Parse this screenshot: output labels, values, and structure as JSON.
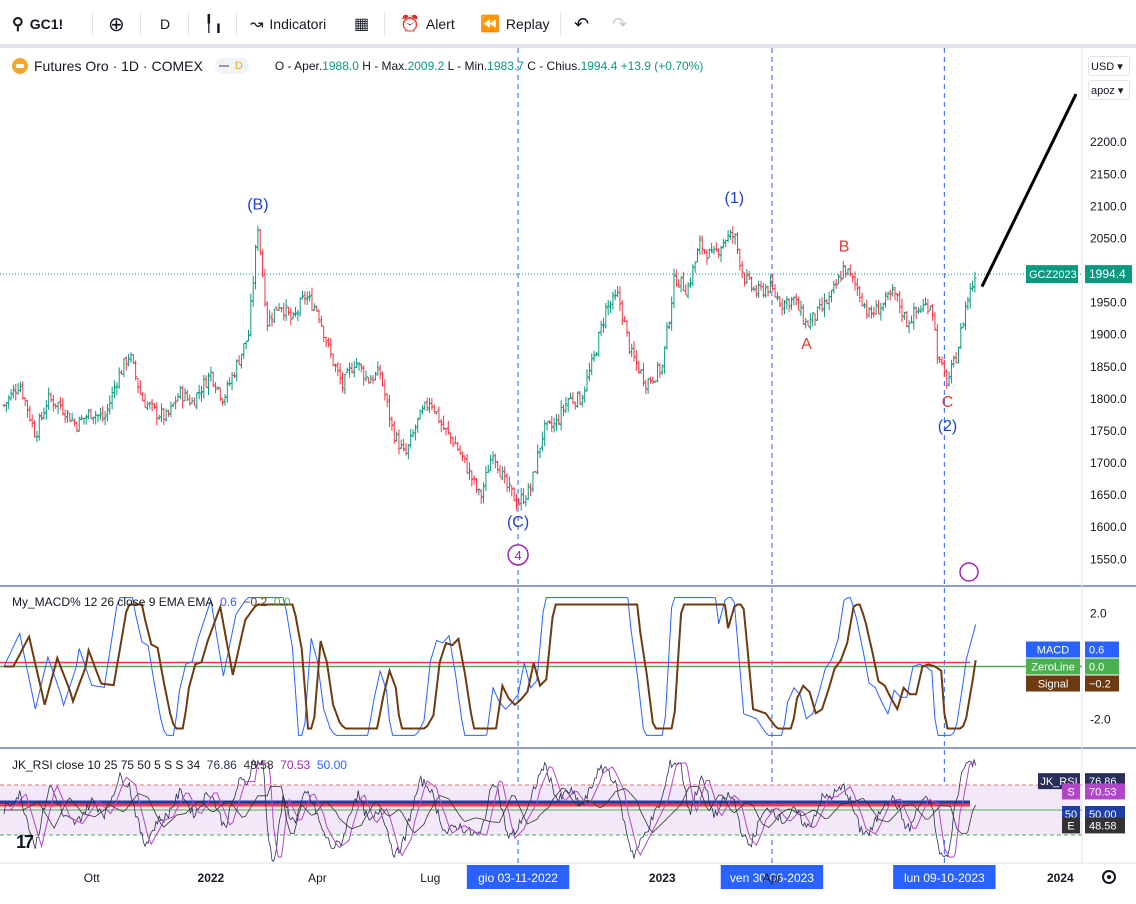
{
  "toolbar": {
    "symbol": "GC1!",
    "interval": "D",
    "indicators_label": "Indicatori",
    "alert_label": "Alert",
    "replay_label": "Replay"
  },
  "legend": {
    "title": "Futures Oro · 1D · COMEX",
    "badge": "D",
    "open_label": "O - Aper.",
    "open": "1988.0",
    "high_label": "H - Max.",
    "high": "2009.2",
    "low_label": "L - Min.",
    "low": "1983.7",
    "close_label": "C - Chius.",
    "close": "1994.4",
    "change": "+13.9 (+0.70%)"
  },
  "currency": "USD",
  "scale_mode": "apoz",
  "colors": {
    "up": "#089981",
    "down": "#f23645",
    "accent": "#2962ff",
    "wave_label": "#2341c7",
    "abc_label": "#e53935",
    "purple": "#9c27b0"
  },
  "chart_data": [
    {
      "type": "candlestick",
      "title": "Futures Oro · 1D · COMEX",
      "ylim": [
        1510,
        2300
      ],
      "y_ticks": [
        2200,
        2150,
        2100,
        2050,
        2000,
        1950,
        1900,
        1850,
        1800,
        1750,
        1700,
        1650,
        1600,
        1550
      ],
      "x_ticks": [
        "Ott",
        "2022",
        "Apr",
        "Lug",
        "2023",
        "Apr",
        "2024"
      ],
      "last_price_label": "GCZ2023",
      "last_price": 1994.4,
      "series_path": [
        {
          "t": 0,
          "p": 1790
        },
        {
          "t": 5,
          "p": 1825
        },
        {
          "t": 10,
          "p": 1745
        },
        {
          "t": 14,
          "p": 1800
        },
        {
          "t": 18,
          "p": 1790
        },
        {
          "t": 23,
          "p": 1760
        },
        {
          "t": 28,
          "p": 1780
        },
        {
          "t": 32,
          "p": 1768
        },
        {
          "t": 36,
          "p": 1830
        },
        {
          "t": 40,
          "p": 1870
        },
        {
          "t": 44,
          "p": 1800
        },
        {
          "t": 48,
          "p": 1780
        },
        {
          "t": 52,
          "p": 1770
        },
        {
          "t": 56,
          "p": 1810
        },
        {
          "t": 60,
          "p": 1795
        },
        {
          "t": 66,
          "p": 1840
        },
        {
          "t": 70,
          "p": 1800
        },
        {
          "t": 74,
          "p": 1850
        },
        {
          "t": 78,
          "p": 1900
        },
        {
          "t": 81,
          "p": 2070
        },
        {
          "t": 84,
          "p": 1920
        },
        {
          "t": 88,
          "p": 1950
        },
        {
          "t": 92,
          "p": 1920
        },
        {
          "t": 96,
          "p": 1960
        },
        {
          "t": 100,
          "p": 1940
        },
        {
          "t": 104,
          "p": 1870
        },
        {
          "t": 108,
          "p": 1820
        },
        {
          "t": 112,
          "p": 1860
        },
        {
          "t": 116,
          "p": 1830
        },
        {
          "t": 120,
          "p": 1840
        },
        {
          "t": 124,
          "p": 1750
        },
        {
          "t": 128,
          "p": 1710
        },
        {
          "t": 132,
          "p": 1765
        },
        {
          "t": 136,
          "p": 1800
        },
        {
          "t": 140,
          "p": 1755
        },
        {
          "t": 144,
          "p": 1730
        },
        {
          "t": 148,
          "p": 1690
        },
        {
          "t": 152,
          "p": 1645
        },
        {
          "t": 156,
          "p": 1720
        },
        {
          "t": 160,
          "p": 1665
        },
        {
          "t": 164,
          "p": 1638
        },
        {
          "t": 168,
          "p": 1660
        },
        {
          "t": 172,
          "p": 1750
        },
        {
          "t": 176,
          "p": 1760
        },
        {
          "t": 180,
          "p": 1800
        },
        {
          "t": 184,
          "p": 1800
        },
        {
          "t": 188,
          "p": 1860
        },
        {
          "t": 192,
          "p": 1940
        },
        {
          "t": 196,
          "p": 1960
        },
        {
          "t": 200,
          "p": 1870
        },
        {
          "t": 205,
          "p": 1825
        },
        {
          "t": 210,
          "p": 1850
        },
        {
          "t": 214,
          "p": 1990
        },
        {
          "t": 218,
          "p": 1970
        },
        {
          "t": 222,
          "p": 2040
        },
        {
          "t": 226,
          "p": 2020
        },
        {
          "t": 230,
          "p": 2050
        },
        {
          "t": 233,
          "p": 2055
        },
        {
          "t": 236,
          "p": 1990
        },
        {
          "t": 240,
          "p": 1965
        },
        {
          "t": 244,
          "p": 1975
        },
        {
          "t": 248,
          "p": 1950
        },
        {
          "t": 252,
          "p": 1955
        },
        {
          "t": 256,
          "p": 1915
        },
        {
          "t": 260,
          "p": 1935
        },
        {
          "t": 264,
          "p": 1960
        },
        {
          "t": 268,
          "p": 2005
        },
        {
          "t": 272,
          "p": 1975
        },
        {
          "t": 276,
          "p": 1930
        },
        {
          "t": 280,
          "p": 1945
        },
        {
          "t": 284,
          "p": 1965
        },
        {
          "t": 288,
          "p": 1920
        },
        {
          "t": 292,
          "p": 1940
        },
        {
          "t": 296,
          "p": 1950
        },
        {
          "t": 298,
          "p": 1860
        },
        {
          "t": 301,
          "p": 1825
        },
        {
          "t": 304,
          "p": 1870
        },
        {
          "t": 307,
          "p": 1950
        },
        {
          "t": 310,
          "p": 1994.4
        }
      ],
      "wave_labels": [
        {
          "text": "(B)",
          "t": 81,
          "p": 2070,
          "pos": "above",
          "kind": "wave"
        },
        {
          "text": "(C)",
          "t": 164,
          "p": 1638,
          "pos": "below",
          "kind": "wave"
        },
        {
          "text": "4",
          "t": 164,
          "p": 1638,
          "pos": "circle",
          "kind": "circle"
        },
        {
          "text": "(1)",
          "t": 233,
          "p": 2080,
          "pos": "above",
          "kind": "wave"
        },
        {
          "text": "A",
          "t": 256,
          "p": 1915,
          "pos": "below",
          "kind": "abc"
        },
        {
          "text": "B",
          "t": 268,
          "p": 2005,
          "pos": "above",
          "kind": "abc"
        },
        {
          "text": "C",
          "t": 301,
          "p": 1825,
          "pos": "below",
          "kind": "abc"
        },
        {
          "text": "(2)",
          "t": 301,
          "p": 1825,
          "pos": "below2",
          "kind": "wave"
        }
      ],
      "vertical_markers": [
        {
          "t": 164,
          "label": "gio 03-11-2022"
        },
        {
          "t": 245,
          "label": "ven 30-06-2023"
        },
        {
          "t": 300,
          "label": "lun 09-10-2023"
        }
      ],
      "projection_line": {
        "from": {
          "t": 312,
          "p": 1975
        },
        "to": {
          "t": 342,
          "p": 2275
        }
      }
    },
    {
      "type": "line",
      "title": "My_MACD% 12 26 close 9 EMA EMA",
      "values_label": {
        "macd": "0.6",
        "signal": "−0.2",
        "zero": "0.0"
      },
      "ylim": [
        -3,
        3
      ],
      "y_ticks": [
        2.0,
        -2.0
      ],
      "series": [
        {
          "name": "MACD",
          "value": 0.6,
          "color": "#2962ff"
        },
        {
          "name": "ZeroLine",
          "value": 0.0,
          "color": "#4caf50"
        },
        {
          "name": "Signal",
          "value": -0.2,
          "color": "#6d3b12"
        }
      ],
      "level_line": 0.1
    },
    {
      "type": "line",
      "title": "JK_RSI close 10 25 75 50 5 S S 34",
      "values_label": [
        "76.86",
        "48.58",
        "70.53",
        "50.00"
      ],
      "ylim": [
        0,
        100
      ],
      "series": [
        {
          "name": "JK_RSI",
          "value": 76.86,
          "color": "#2a2e5a"
        },
        {
          "name": "S",
          "value": 70.53,
          "color": "#b046c8"
        },
        {
          "name": "50",
          "value": 50.0,
          "color": "#1e3fa8"
        },
        {
          "name": "E",
          "value": 48.58,
          "color": "#333333"
        }
      ],
      "bands": [
        75,
        25
      ]
    }
  ]
}
